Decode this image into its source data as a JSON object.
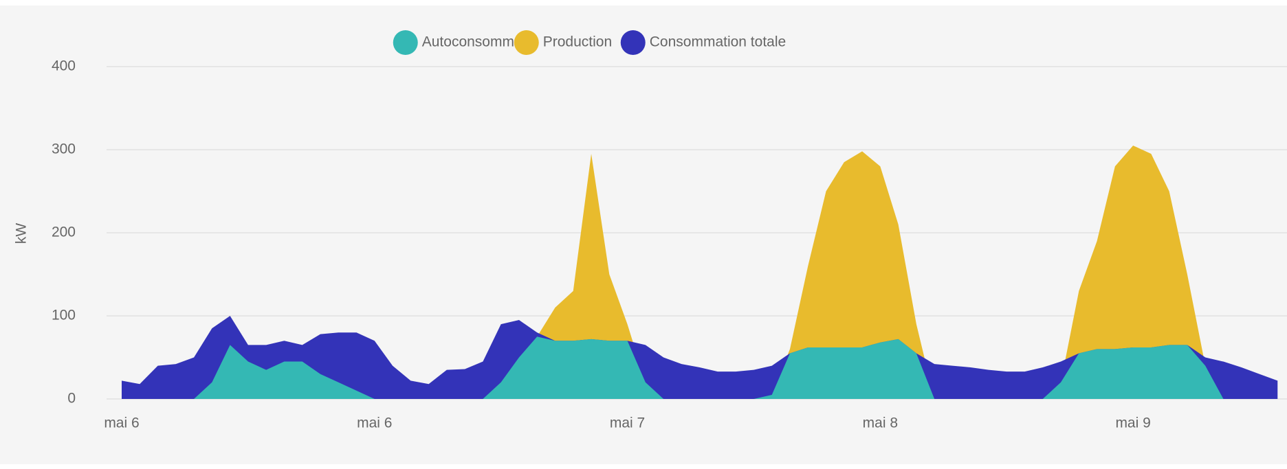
{
  "chart_data": {
    "type": "area",
    "y_label": "kW",
    "categories": [
      "mai 6",
      null,
      null,
      null,
      null,
      null,
      null,
      null,
      null,
      null,
      null,
      null,
      null,
      null,
      "mai 6",
      null,
      null,
      null,
      null,
      null,
      null,
      null,
      null,
      null,
      null,
      null,
      null,
      null,
      "mai 7",
      null,
      null,
      null,
      null,
      null,
      null,
      null,
      null,
      null,
      null,
      null,
      null,
      null,
      "mai 8",
      null,
      null,
      null,
      null,
      null,
      null,
      null,
      null,
      null,
      null,
      null,
      null,
      null,
      "mai 9",
      null,
      null,
      null,
      null,
      null,
      null,
      null,
      null
    ],
    "series": [
      {
        "name": "Autoconsommé",
        "color": "#34b8b4",
        "values": [
          0,
          0,
          0,
          0,
          0,
          20,
          65,
          45,
          35,
          45,
          45,
          30,
          20,
          10,
          0,
          0,
          0,
          0,
          0,
          0,
          0,
          20,
          50,
          75,
          70,
          70,
          72,
          70,
          70,
          20,
          0,
          0,
          0,
          0,
          0,
          0,
          5,
          55,
          62,
          62,
          62,
          62,
          68,
          72,
          55,
          0,
          0,
          0,
          0,
          0,
          0,
          0,
          20,
          55,
          60,
          60,
          62,
          62,
          65,
          65,
          40,
          0,
          0,
          0,
          0
        ]
      },
      {
        "name": "Production",
        "color": "#e8bb2d",
        "values": [
          0,
          0,
          0,
          0,
          0,
          20,
          65,
          45,
          35,
          45,
          45,
          30,
          20,
          10,
          0,
          0,
          0,
          0,
          0,
          0,
          0,
          20,
          50,
          75,
          110,
          130,
          295,
          150,
          90,
          20,
          0,
          0,
          0,
          0,
          0,
          0,
          5,
          60,
          160,
          250,
          285,
          298,
          280,
          210,
          90,
          0,
          0,
          0,
          0,
          0,
          0,
          0,
          20,
          130,
          190,
          280,
          305,
          295,
          250,
          150,
          40,
          0,
          0,
          0,
          0
        ]
      },
      {
        "name": "Consommation totale",
        "color": "#3333b8",
        "values": [
          22,
          18,
          40,
          42,
          50,
          85,
          100,
          65,
          65,
          70,
          65,
          78,
          80,
          80,
          70,
          40,
          22,
          18,
          35,
          36,
          45,
          90,
          95,
          80,
          70,
          70,
          72,
          70,
          70,
          65,
          50,
          42,
          38,
          33,
          33,
          35,
          40,
          55,
          62,
          62,
          62,
          62,
          68,
          72,
          55,
          42,
          40,
          38,
          35,
          33,
          33,
          38,
          45,
          55,
          60,
          60,
          62,
          62,
          65,
          65,
          50,
          45,
          38,
          30,
          22
        ]
      }
    ],
    "ylim": [
      0,
      400
    ],
    "yticks": [
      0,
      100,
      200,
      300,
      400
    ],
    "grid": true,
    "legend": "top"
  }
}
